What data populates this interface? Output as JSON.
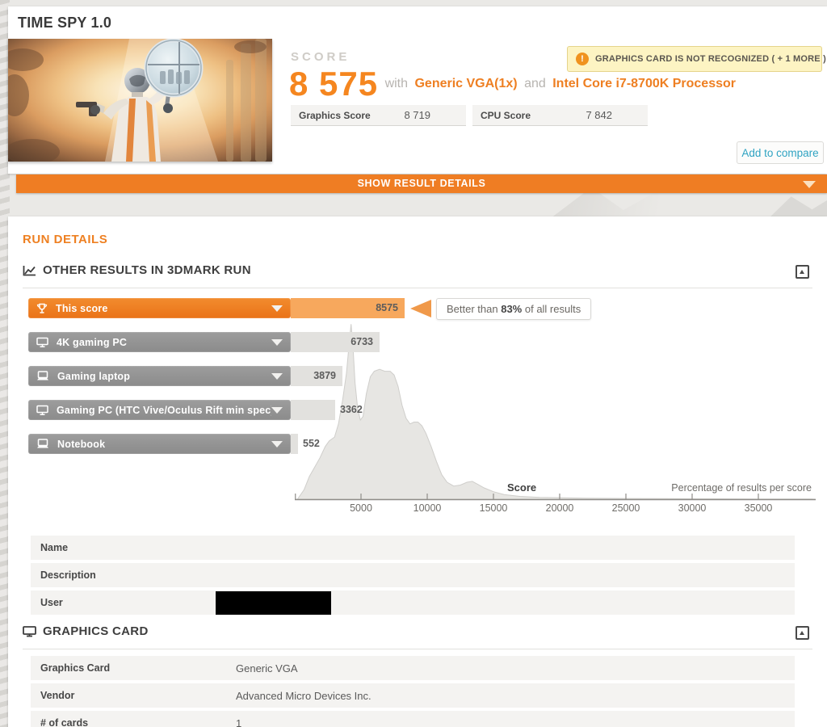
{
  "colors": {
    "accent_orange": "#ef7d23",
    "score_orange": "#f5861f",
    "bar_light_orange": "#f7a85d",
    "warning_bg": "#fdf4c3",
    "teal_link": "#2fa3c2",
    "gray_bar": "#919191"
  },
  "page": {
    "title": "TIME SPY 1.0"
  },
  "score_panel": {
    "score_label": "SCORE",
    "score": "8 575",
    "with_text": "with",
    "gpu_name": "Generic VGA(1x)",
    "and_text": "and",
    "cpu_name": "Intel Core i7-8700K Processor",
    "subscores": [
      {
        "label": "Graphics Score",
        "value": "8 719"
      },
      {
        "label": "CPU Score",
        "value": "7 842"
      }
    ],
    "warning_text": "GRAPHICS CARD IS NOT RECOGNIZED ( + 1 MORE )",
    "add_to_compare_label": "Add to compare"
  },
  "details_bar": {
    "label": "SHOW RESULT DETAILS"
  },
  "run_details": {
    "heading": "RUN DETAILS",
    "section_title": "OTHER RESULTS IN 3DMARK RUN"
  },
  "chart_data": {
    "type": "area",
    "title": "OTHER RESULTS IN 3DMARK RUN",
    "xlabel": "Score",
    "right_label": "Percentage of results per score",
    "x_ticks": [
      5000,
      10000,
      15000,
      20000,
      25000,
      30000,
      35000
    ],
    "x_range": [
      0,
      39300
    ],
    "grid": false,
    "comparison_bars": [
      {
        "label": "This score",
        "icon": "trophy",
        "value": 8575,
        "value_text": "8575",
        "highlight": true
      },
      {
        "label": "4K gaming PC",
        "icon": "desktop",
        "value": 6733,
        "value_text": "6733",
        "highlight": false
      },
      {
        "label": "Gaming laptop",
        "icon": "laptop",
        "value": 3879,
        "value_text": "3879",
        "highlight": false
      },
      {
        "label": "Gaming PC (HTC Vive/Oculus Rift min spec)",
        "icon": "desktop",
        "value": 3362,
        "value_text": "3362",
        "highlight": false
      },
      {
        "label": "Notebook",
        "icon": "laptop",
        "value": 552,
        "value_text": "552",
        "highlight": false
      }
    ],
    "callout": {
      "prefix": "Better than ",
      "pct": "83%",
      "suffix": " of all results"
    },
    "distribution_points": [
      [
        200,
        0
      ],
      [
        700,
        5
      ],
      [
        1100,
        12
      ],
      [
        1500,
        17
      ],
      [
        1900,
        22
      ],
      [
        2300,
        28
      ],
      [
        2600,
        31
      ],
      [
        3000,
        33
      ],
      [
        3300,
        40
      ],
      [
        3600,
        52
      ],
      [
        3900,
        67
      ],
      [
        4100,
        82
      ],
      [
        4250,
        93
      ],
      [
        4400,
        80
      ],
      [
        4550,
        62
      ],
      [
        4750,
        48
      ],
      [
        4950,
        42
      ],
      [
        5150,
        44
      ],
      [
        5400,
        56
      ],
      [
        5700,
        65
      ],
      [
        6000,
        68
      ],
      [
        6400,
        69
      ],
      [
        6800,
        68
      ],
      [
        7200,
        68
      ],
      [
        7500,
        66
      ],
      [
        7800,
        60
      ],
      [
        8100,
        50
      ],
      [
        8400,
        43
      ],
      [
        8700,
        40
      ],
      [
        9000,
        41
      ],
      [
        9300,
        41
      ],
      [
        9600,
        39
      ],
      [
        9900,
        35
      ],
      [
        10300,
        28
      ],
      [
        10700,
        20
      ],
      [
        11100,
        13
      ],
      [
        11500,
        9
      ],
      [
        12000,
        7
      ],
      [
        12500,
        7.5
      ],
      [
        13000,
        9
      ],
      [
        13400,
        9.5
      ],
      [
        13800,
        8
      ],
      [
        14300,
        6
      ],
      [
        15000,
        4
      ],
      [
        15800,
        2.5
      ],
      [
        17000,
        1.5
      ],
      [
        18500,
        1
      ],
      [
        20000,
        0.8
      ],
      [
        22000,
        0.5
      ],
      [
        25000,
        0.4
      ],
      [
        28000,
        0.3
      ],
      [
        31000,
        0.2
      ],
      [
        35000,
        0.15
      ],
      [
        39000,
        0.1
      ]
    ]
  },
  "result_info": {
    "rows": [
      {
        "label": "Name",
        "value": "",
        "redacted": false
      },
      {
        "label": "Description",
        "value": "",
        "redacted": false
      },
      {
        "label": "User",
        "value": "",
        "redacted": true
      }
    ]
  },
  "graphics_card_section": {
    "title": "GRAPHICS CARD",
    "rows": [
      {
        "label": "Graphics Card",
        "value": "Generic VGA"
      },
      {
        "label": "Vendor",
        "value": "Advanced Micro Devices Inc."
      },
      {
        "label": "# of cards",
        "value": "1"
      }
    ]
  }
}
